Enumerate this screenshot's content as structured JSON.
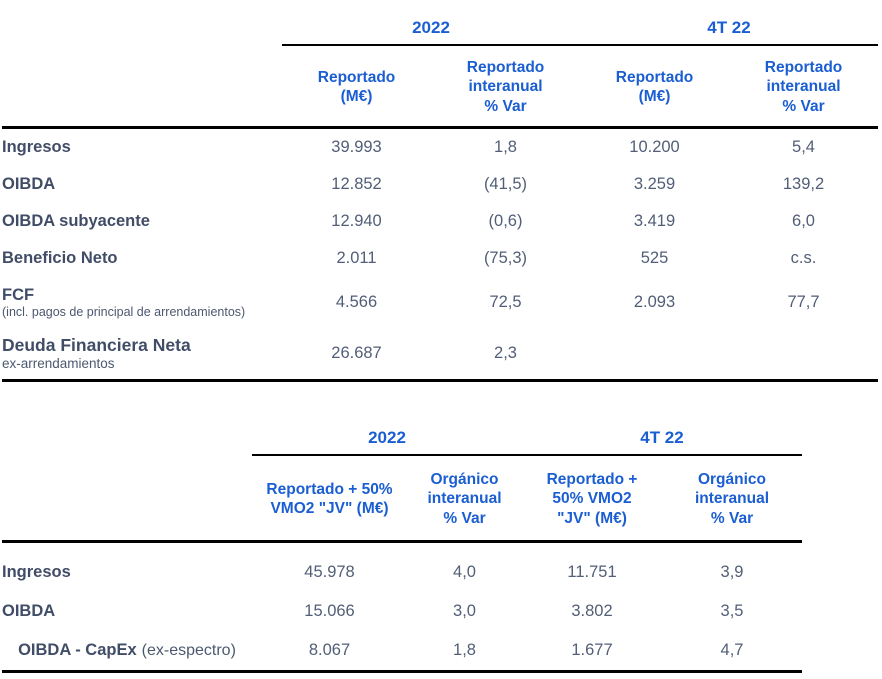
{
  "colors": {
    "accent_blue": "#1b5ed2",
    "label_dark": "#414d67",
    "value_gray": "#525e77",
    "rule_black": "#000000"
  },
  "table1": {
    "year_headers": [
      "2022",
      "4T 22"
    ],
    "col_headers": [
      "Reportado\n(M€)",
      "Reportado\ninteranual\n% Var",
      "Reportado\n(M€)",
      "Reportado\ninteranual\n% Var"
    ],
    "rows": [
      {
        "label": "Ingresos",
        "sublabel": "",
        "values": [
          "39.993",
          "1,8",
          "10.200",
          "5,4"
        ]
      },
      {
        "label": "OIBDA",
        "sublabel": "",
        "values": [
          "12.852",
          "(41,5)",
          "3.259",
          "139,2"
        ]
      },
      {
        "label": "OIBDA subyacente",
        "sublabel": "",
        "values": [
          "12.940",
          "(0,6)",
          "3.419",
          "6,0"
        ]
      },
      {
        "label": "Beneficio Neto",
        "sublabel": "",
        "values": [
          "2.011",
          "(75,3)",
          "525",
          "c.s."
        ]
      },
      {
        "label": "FCF",
        "sublabel": "(incl. pagos de principal de arrendamientos)",
        "values": [
          "4.566",
          "72,5",
          "2.093",
          "77,7"
        ]
      },
      {
        "label": "Deuda Financiera Neta",
        "sublabel": "ex-arrendamientos",
        "values": [
          "26.687",
          "2,3",
          "",
          ""
        ]
      }
    ]
  },
  "table2": {
    "year_headers": [
      "2022",
      "4T 22"
    ],
    "col_headers": [
      "Reportado + 50%\nVMO2 \"JV\" (M€)",
      "Orgánico\ninteranual\n% Var",
      "Reportado +\n50% VMO2\n\"JV\" (M€)",
      "Orgánico\ninteranual\n% Var"
    ],
    "rows": [
      {
        "label": "Ingresos",
        "label_suffix": "",
        "values": [
          "45.978",
          "4,0",
          "11.751",
          "3,9"
        ]
      },
      {
        "label": "OIBDA",
        "label_suffix": "",
        "values": [
          "15.066",
          "3,0",
          "3.802",
          "3,5"
        ]
      },
      {
        "label": "OIBDA - CapEx",
        "label_suffix": "(ex-espectro)",
        "values": [
          "8.067",
          "1,8",
          "1.677",
          "4,7"
        ]
      }
    ]
  }
}
